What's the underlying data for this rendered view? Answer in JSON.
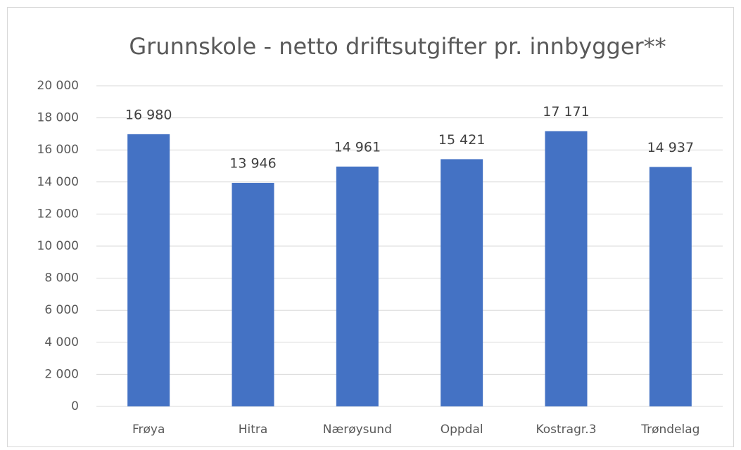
{
  "chart_data": {
    "type": "bar",
    "title": "Grunnskole - netto driftsutgifter pr. innbygger**",
    "categories": [
      "Frøya",
      "Hitra",
      "Nærøysund",
      "Oppdal",
      "Kostragr.3",
      "Trøndelag"
    ],
    "values": [
      16980,
      13946,
      14961,
      15421,
      17171,
      14937
    ],
    "value_labels": [
      "16 980",
      "13 946",
      "14 961",
      "15 421",
      "17 171",
      "14 937"
    ],
    "color": "#4472c4",
    "ylim": [
      0,
      20000
    ],
    "yticks": [
      0,
      {
        "value": 2000,
        "label": "2 000"
      },
      {
        "value": 4000,
        "label": "4 000"
      },
      {
        "value": 6000,
        "label": "6 000"
      },
      {
        "value": 8000,
        "label": "8 000"
      },
      {
        "value": 10000,
        "label": "10 000"
      },
      {
        "value": 12000,
        "label": "12 000"
      },
      {
        "value": 14000,
        "label": "14 000"
      },
      {
        "value": 16000,
        "label": "16 000"
      },
      {
        "value": 18000,
        "label": "18 000"
      },
      {
        "value": 20000,
        "label": "20 000"
      }
    ],
    "grid": true
  }
}
